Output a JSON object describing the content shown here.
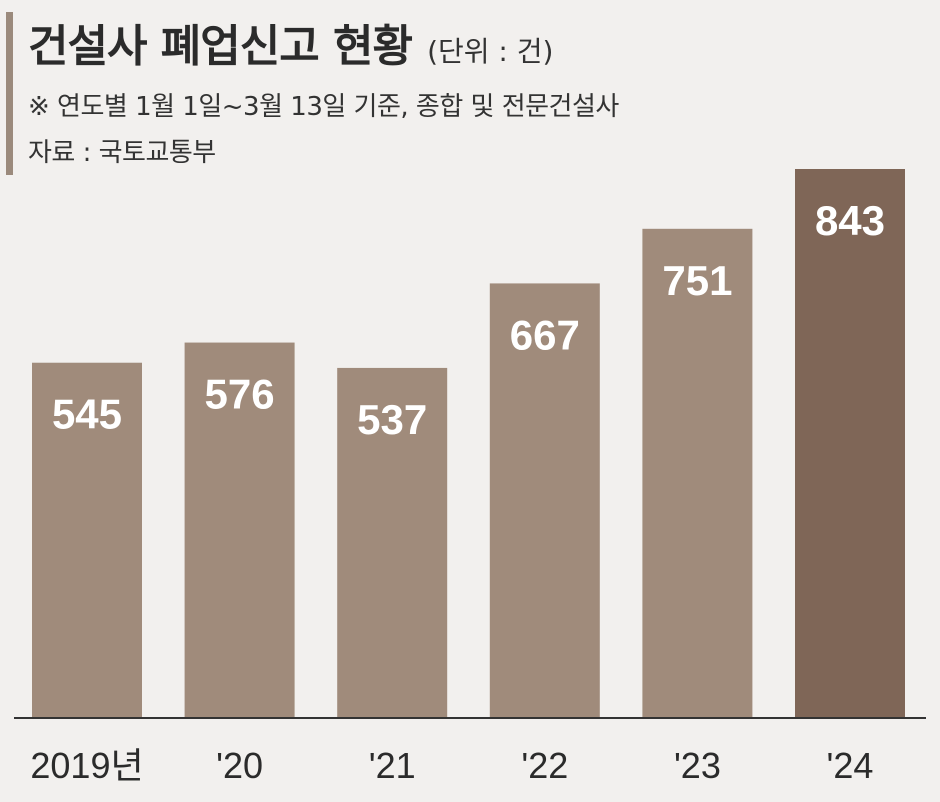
{
  "header": {
    "title": "건설사 폐업신고 현황",
    "unit": "(단위 : 건)",
    "note": "※ 연도별 1월 1일~3월 13일 기준, 종합 및 전문건설사",
    "source": "자료 : 국토교통부"
  },
  "colors": {
    "accent": "#9b8a7c",
    "bar": "#a08b7b",
    "bar_highlight": "#7f6657",
    "baseline": "#333333"
  },
  "chart_data": {
    "type": "bar",
    "title": "건설사 폐업신고 현황",
    "unit": "(단위 : 건)",
    "categories": [
      "2019년",
      "'20",
      "'21",
      "'22",
      "'23",
      "'24"
    ],
    "values": [
      545,
      576,
      537,
      667,
      751,
      843
    ],
    "highlight_index": 5,
    "ylim": [
      0,
      900
    ],
    "grid": false,
    "legend": "none"
  }
}
